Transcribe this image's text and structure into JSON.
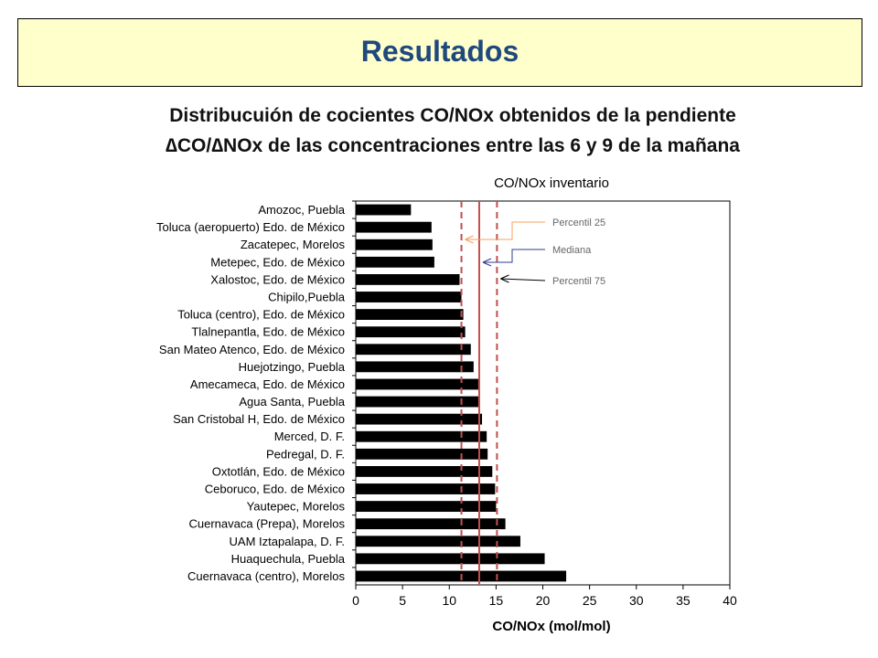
{
  "page": {
    "title": "Resultados",
    "subtitle_line1": "Distribucuión de cocientes CO/NOx obtenidos de la pendiente",
    "subtitle_line2": "∆CO/∆NOx de las concentraciones entre las 6 y 9 de la mañana"
  },
  "colors": {
    "banner_bg": "#ffffcc",
    "title": "#1f497d",
    "bar": "#000000",
    "reference_line": "#c0504d"
  },
  "chart_data": {
    "type": "bar",
    "orientation": "horizontal",
    "title": "CO/NOx inventario",
    "xlabel": "CO/NOx (mol/mol)",
    "ylabel": "",
    "xlim": [
      0,
      40
    ],
    "xticks": [
      0,
      5,
      10,
      15,
      20,
      25,
      30,
      35,
      40
    ],
    "grid": false,
    "categories": [
      "Amozoc, Puebla",
      "Toluca (aeropuerto) Edo. de México",
      "Zacatepec, Morelos",
      "Metepec, Edo. de México",
      "Xalostoc, Edo. de México",
      "Chipilo,Puebla",
      "Toluca (centro), Edo. de México",
      "Tlalnepantla, Edo. de México",
      "San Mateo Atenco, Edo. de México",
      "Huejotzingo, Puebla",
      "Amecameca, Edo. de México",
      "Agua Santa, Puebla",
      "San Cristobal H, Edo. de México",
      "Merced, D. F.",
      "Pedregal, D. F.",
      "Oxtotlán, Edo. de México",
      "Ceboruco, Edo. de México",
      "Yautepec, Morelos",
      "Cuernavaca (Prepa), Morelos",
      "UAM Iztapalapa, D. F.",
      "Huaquechula, Puebla",
      "Cuernavaca (centro), Morelos"
    ],
    "values": [
      5.9,
      8.1,
      8.2,
      8.4,
      11.1,
      11.3,
      11.5,
      11.7,
      12.3,
      12.6,
      13.1,
      13.1,
      13.5,
      14.0,
      14.1,
      14.6,
      14.9,
      15.0,
      16.0,
      17.6,
      20.2,
      22.5
    ],
    "reference_lines": [
      {
        "name": "Percentil 25",
        "value": 11.3,
        "style": "dashed"
      },
      {
        "name": "Mediana",
        "value": 13.2,
        "style": "solid"
      },
      {
        "name": "Percentil 75",
        "value": 15.1,
        "style": "dashed"
      }
    ]
  }
}
